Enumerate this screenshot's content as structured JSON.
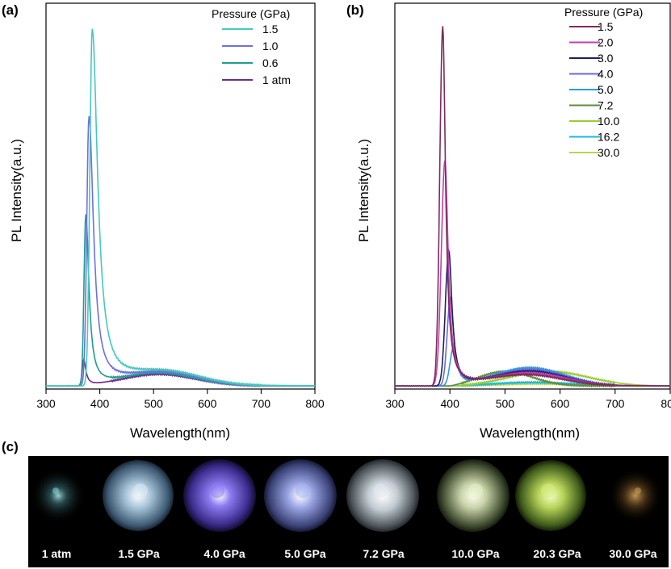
{
  "panel_labels": [
    "(a)",
    "(b)",
    "(c)"
  ],
  "chart_data": [
    {
      "type": "line",
      "panel": "(a)",
      "xlabel": "Wavelength(nm)",
      "ylabel": "PL Intensity(a.u.)",
      "xlim": [
        300,
        800
      ],
      "ylim": [
        0,
        1.0
      ],
      "x_ticks": [
        300,
        400,
        500,
        600,
        700,
        800
      ],
      "x_tick_labels": [
        "300",
        "400",
        "500",
        "600",
        "700",
        "800"
      ],
      "legend_title": "Pressure (GPa)",
      "legend_position": "top-right",
      "series": [
        {
          "name": "1.5",
          "color": "#45C9BE",
          "peak_x": 386,
          "peak_y": 0.98,
          "onset": 370,
          "width_r": 12,
          "broad_x": 520,
          "broad_y": 0.037,
          "broad_w": 95
        },
        {
          "name": "1.0",
          "color": "#6F6FE0",
          "peak_x": 380,
          "peak_y": 0.74,
          "onset": 365,
          "width_r": 10,
          "broad_x": 515,
          "broad_y": 0.036,
          "broad_w": 95
        },
        {
          "name": "0.6",
          "color": "#1E9E8C",
          "peak_x": 374,
          "peak_y": 0.47,
          "onset": 362,
          "width_r": 7,
          "broad_x": 510,
          "broad_y": 0.035,
          "broad_w": 95
        },
        {
          "name": "1 atm",
          "color": "#6B2D8A",
          "peak_x": 370,
          "peak_y": 0.07,
          "onset": 360,
          "width_r": 5,
          "broad_x": 510,
          "broad_y": 0.032,
          "broad_w": 95
        }
      ]
    },
    {
      "type": "line",
      "panel": "(b)",
      "xlabel": "Wavelength(nm)",
      "ylabel": "PL Intensity(a.u.)",
      "xlim": [
        300,
        800
      ],
      "ylim": [
        0,
        1.0
      ],
      "x_ticks": [
        300,
        400,
        500,
        600,
        700,
        800
      ],
      "x_tick_labels": [
        "300",
        "400",
        "500",
        "600",
        "700",
        "800"
      ],
      "legend_title": "Pressure (GPa)",
      "legend_position": "top-right",
      "series": [
        {
          "name": "1.5",
          "color": "#7B2C5A",
          "peak_x": 387,
          "peak_y": 0.99,
          "onset": 368,
          "width_r": 6,
          "broad_x": 540,
          "broad_y": 0.03,
          "broad_w": 90
        },
        {
          "name": "2.0",
          "color": "#C23FB0",
          "peak_x": 391,
          "peak_y": 0.62,
          "onset": 368,
          "width_r": 7,
          "broad_x": 545,
          "broad_y": 0.035,
          "broad_w": 90
        },
        {
          "name": "3.0",
          "color": "#1F1F5E",
          "peak_x": 398,
          "peak_y": 0.37,
          "onset": 376,
          "width_r": 7,
          "broad_x": 545,
          "broad_y": 0.04,
          "broad_w": 90
        },
        {
          "name": "4.0",
          "color": "#6A6AE0",
          "peak_x": 401,
          "peak_y": 0.24,
          "onset": 380,
          "width_r": 7,
          "broad_x": 545,
          "broad_y": 0.045,
          "broad_w": 90
        },
        {
          "name": "5.0",
          "color": "#2E9BE0",
          "peak_x": 406,
          "peak_y": 0.1,
          "onset": 385,
          "width_r": 8,
          "broad_x": 545,
          "broad_y": 0.05,
          "broad_w": 90
        },
        {
          "name": "7.2",
          "color": "#5E8E3A",
          "peak_x": 410,
          "peak_y": 0.0,
          "onset": 400,
          "width_r": 8,
          "broad_x": 500,
          "broad_y": 0.04,
          "broad_w": 70
        },
        {
          "name": "10.0",
          "color": "#9ACD32",
          "peak_x": 410,
          "peak_y": 0.0,
          "onset": 400,
          "width_r": 8,
          "broad_x": 580,
          "broad_y": 0.04,
          "broad_w": 100
        },
        {
          "name": "16.2",
          "color": "#1BB8D8",
          "peak_x": 410,
          "peak_y": 0.0,
          "onset": 400,
          "width_r": 8,
          "broad_x": 550,
          "broad_y": 0.01,
          "broad_w": 100
        },
        {
          "name": "30.0",
          "color": "#B5D84A",
          "peak_x": 410,
          "peak_y": 0.0,
          "onset": 400,
          "width_r": 8,
          "broad_x": 560,
          "broad_y": 0.006,
          "broad_w": 100
        }
      ]
    }
  ],
  "photos": {
    "labels": [
      "1 atm",
      "1.5 GPa",
      "4.0 GPa",
      "5.0 GPa",
      "7.2 GPa",
      "10.0 GPa",
      "20.3 GPa",
      "30.0 GPa"
    ],
    "glow_colors": [
      "#7FD6D6",
      "#D8EAF4",
      "#8C7CF2",
      "#A8B4F0",
      "#E0E8EE",
      "#E6F0C8",
      "#D4EC7A",
      "#C89A50"
    ],
    "background": "#000000"
  }
}
